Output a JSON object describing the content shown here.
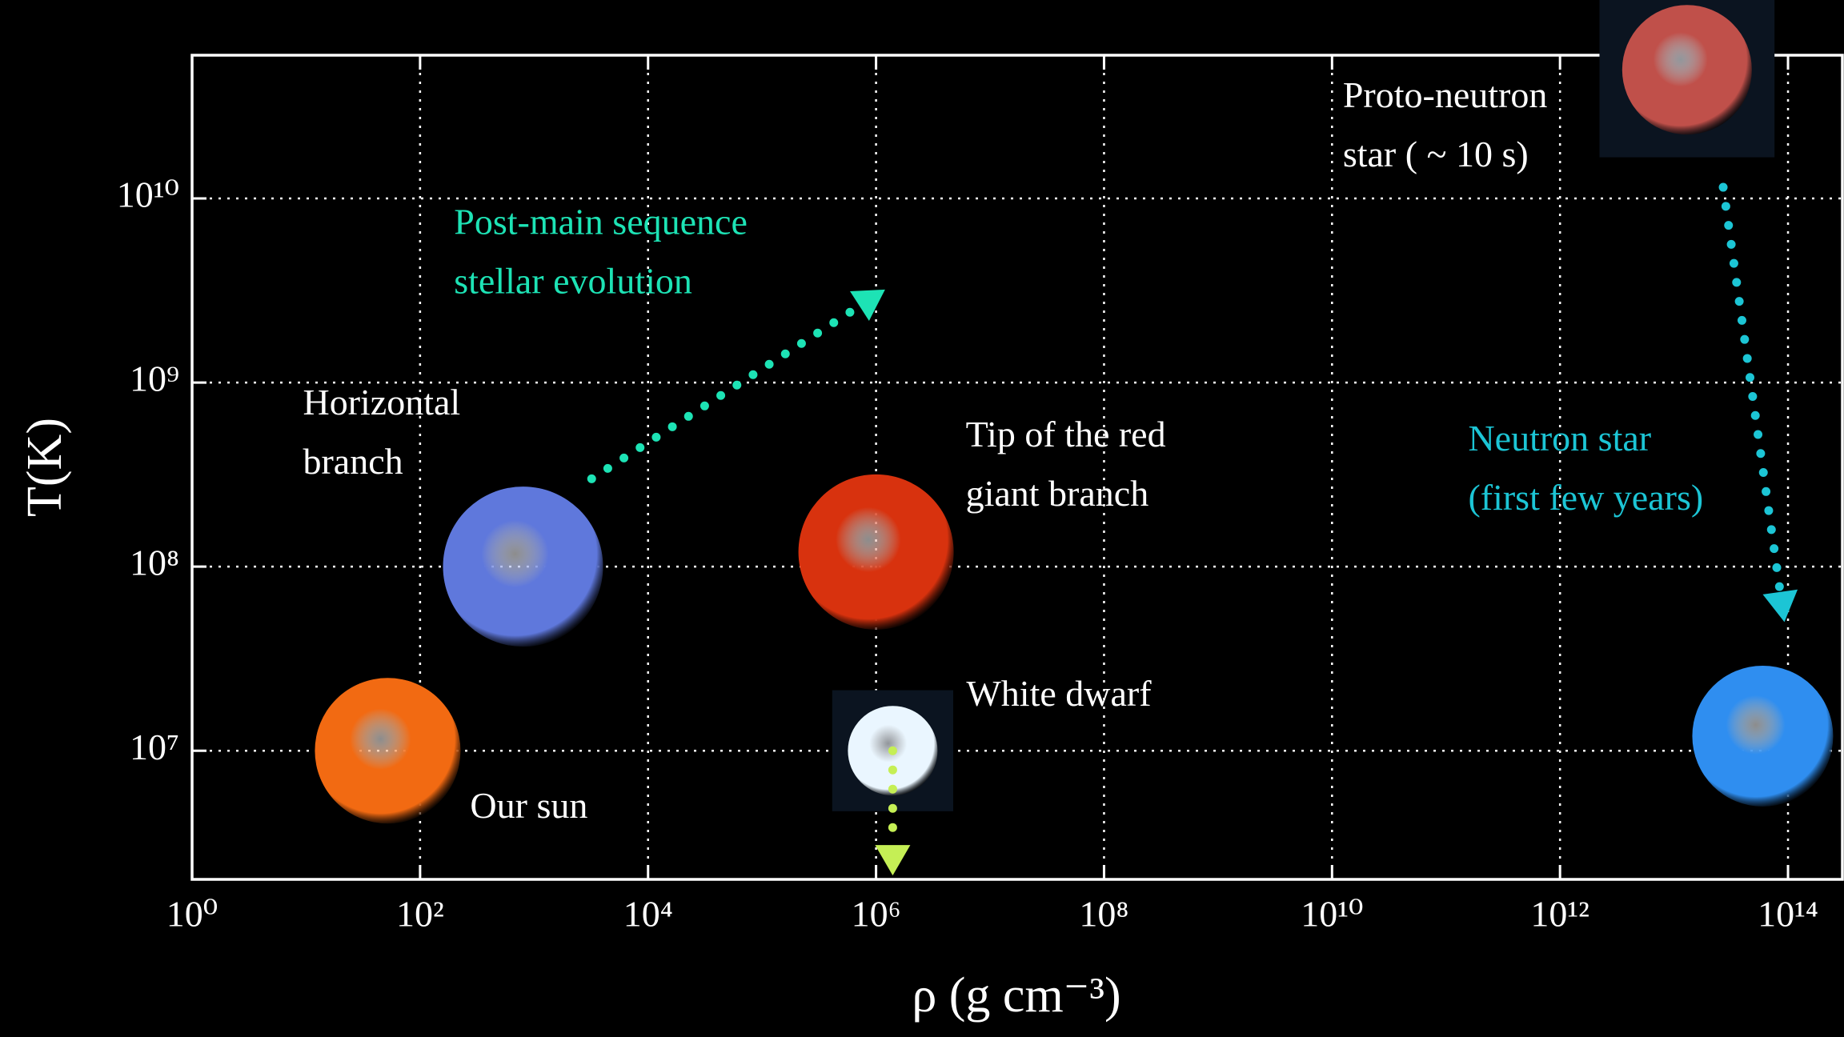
{
  "chart_data": {
    "type": "scatter",
    "xlabel": "ρ (g cm⁻³)",
    "ylabel": "T(K)",
    "xscale": "log",
    "yscale": "log",
    "grid": true,
    "xlim": [
      1,
      300000000000000
    ],
    "ylim": [
      2000000,
      60000000000
    ],
    "xticks": [
      {
        "value": 1,
        "label": "10⁰"
      },
      {
        "value": 100,
        "label": "10²"
      },
      {
        "value": 10000,
        "label": "10⁴"
      },
      {
        "value": 1000000,
        "label": "10⁶"
      },
      {
        "value": 100000000,
        "label": "10⁸"
      },
      {
        "value": 10000000000,
        "label": "10¹⁰"
      },
      {
        "value": 1000000000000,
        "label": "10¹²"
      },
      {
        "value": 100000000000000,
        "label": "10¹⁴"
      }
    ],
    "yticks": [
      {
        "value": 10000000,
        "label": "10⁷"
      },
      {
        "value": 100000000,
        "label": "10⁸"
      },
      {
        "value": 1000000000,
        "label": "10⁹"
      },
      {
        "value": 10000000000,
        "label": "10¹⁰"
      }
    ],
    "points": [
      {
        "label": [
          "Our sun"
        ],
        "x": 52,
        "y": 10000000,
        "color": "#f26a12",
        "label_color": "#ffffff"
      },
      {
        "label": [
          "Horizontal",
          "branch"
        ],
        "x": 800,
        "y": 100000000,
        "color": "#5f78dc",
        "label_color": "#ffffff"
      },
      {
        "label": [
          "Tip of the red",
          "giant branch"
        ],
        "x": 1000000,
        "y": 120000000,
        "color": "#d8320e",
        "label_color": "#ffffff"
      },
      {
        "label": [
          "White dwarf"
        ],
        "x": 1400000,
        "y": 10000000,
        "color": "#eaf6ff",
        "label_color": "#ffffff"
      },
      {
        "label": [
          "Neutron star",
          "(first few years)"
        ],
        "x": 60000000000000,
        "y": 12000000,
        "color": "#2f8ef0",
        "label_color": "#1cc5d5"
      },
      {
        "label": [
          "Proto-neutron",
          "star ( ~ 10 s)"
        ],
        "x": 13000000000000,
        "y": 50000000000,
        "color": "#c0504a",
        "label_color": "#ffffff"
      }
    ],
    "arrows": [
      {
        "label": [
          "Post-main sequence",
          "stellar evolution"
        ],
        "color": "#1de3b5",
        "x": [
          3200,
          1200000
        ],
        "y": [
          300000000,
          3200000000
        ]
      },
      {
        "color": "#1cc5d5",
        "x": [
          27000000000000,
          93000000000000
        ],
        "y": [
          11500000000,
          50000000
        ]
      },
      {
        "color": "#c5ef55",
        "x": [
          1400000,
          1400000
        ],
        "y": [
          10000000,
          2100000
        ]
      }
    ]
  }
}
